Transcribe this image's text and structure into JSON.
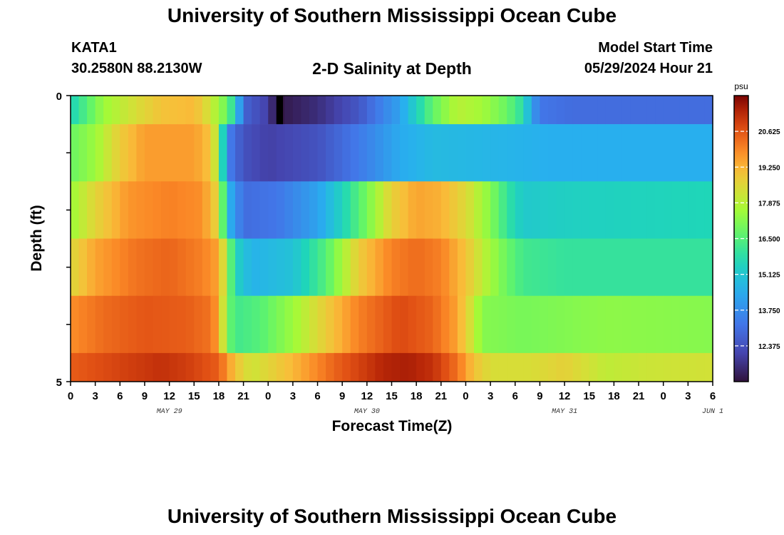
{
  "header": {
    "title": "University of Southern Mississippi Ocean Cube",
    "station": "KATA1",
    "coords": "30.2580N  88.2130W",
    "subtitle": "2-D Salinity at Depth",
    "model_start_label": "Model Start Time",
    "model_start_value": "05/29/2024 Hour 21"
  },
  "footer": {
    "title": "University of Southern Mississippi Ocean Cube"
  },
  "chart_data": {
    "type": "heatmap",
    "title": "2-D Salinity at Depth",
    "xlabel": "Forecast Time(Z)",
    "ylabel": "Depth (ft)",
    "ylim": [
      0,
      5
    ],
    "y_ticks": [
      "0",
      "5"
    ],
    "x_tick_labels": [
      "0",
      "3",
      "6",
      "9",
      "12",
      "15",
      "18",
      "21",
      "0",
      "3",
      "6",
      "9",
      "12",
      "15",
      "18",
      "21",
      "0",
      "3",
      "6",
      "9",
      "12",
      "15",
      "18",
      "21",
      "0",
      "3",
      "6"
    ],
    "date_labels": [
      {
        "text": "MAY 29",
        "hour": 12
      },
      {
        "text": "MAY 30",
        "hour": 36
      },
      {
        "text": "MAY 31",
        "hour": 60
      },
      {
        "text": "JUN 1",
        "hour": 78
      }
    ],
    "hours_total": 78,
    "colorbar": {
      "unit": "psu",
      "min": 11.0,
      "max": 22.0,
      "ticks": [
        "20.625",
        "19.250",
        "17.875",
        "16.500",
        "15.125",
        "13.750",
        "12.375"
      ]
    },
    "layers": [
      {
        "depth_range": [
          0.0,
          0.5
        ],
        "keyframes": [
          [
            0,
            15.5
          ],
          [
            2,
            16.5
          ],
          [
            4,
            17.5
          ],
          [
            7,
            18.2
          ],
          [
            11,
            19.0
          ],
          [
            15,
            19.2
          ],
          [
            17,
            18.2
          ],
          [
            18,
            17.5
          ],
          [
            19,
            16.8
          ],
          [
            20,
            15.5
          ],
          [
            21,
            12.8
          ],
          [
            24,
            12.0
          ],
          [
            25,
            11.0
          ],
          [
            26,
            11.2
          ],
          [
            30,
            11.6
          ],
          [
            35,
            12.5
          ],
          [
            40,
            14.2
          ],
          [
            44,
            16.7
          ],
          [
            47,
            17.9
          ],
          [
            50,
            17.6
          ],
          [
            53,
            16.8
          ],
          [
            55,
            15.8
          ],
          [
            56,
            14.2
          ],
          [
            57,
            13.2
          ],
          [
            61,
            13.0
          ],
          [
            78,
            13.0
          ]
        ]
      },
      {
        "depth_range": [
          0.5,
          1.5
        ],
        "keyframes": [
          [
            0,
            16.8
          ],
          [
            3,
            17.5
          ],
          [
            6,
            18.8
          ],
          [
            9,
            19.6
          ],
          [
            15,
            19.6
          ],
          [
            17,
            19.0
          ],
          [
            18,
            17.5
          ],
          [
            19,
            13.5
          ],
          [
            21,
            12.4
          ],
          [
            24,
            12.0
          ],
          [
            30,
            12.4
          ],
          [
            36,
            13.5
          ],
          [
            40,
            14.4
          ],
          [
            44,
            14.8
          ],
          [
            50,
            14.7
          ],
          [
            55,
            14.6
          ],
          [
            58,
            14.5
          ],
          [
            78,
            14.5
          ]
        ]
      },
      {
        "depth_range": [
          1.5,
          2.5
        ],
        "keyframes": [
          [
            0,
            17.5
          ],
          [
            3,
            18.6
          ],
          [
            7,
            19.7
          ],
          [
            12,
            20.0
          ],
          [
            16,
            19.8
          ],
          [
            18,
            18.5
          ],
          [
            19,
            14.8
          ],
          [
            21,
            13.0
          ],
          [
            25,
            13.2
          ],
          [
            30,
            14.2
          ],
          [
            33,
            15.5
          ],
          [
            36,
            17.0
          ],
          [
            39,
            18.7
          ],
          [
            42,
            19.5
          ],
          [
            45,
            19.3
          ],
          [
            48,
            18.5
          ],
          [
            51,
            17.2
          ],
          [
            53,
            16.0
          ],
          [
            55,
            15.2
          ],
          [
            60,
            15.4
          ],
          [
            78,
            15.6
          ]
        ]
      },
      {
        "depth_range": [
          2.5,
          3.5
        ],
        "keyframes": [
          [
            0,
            18.5
          ],
          [
            3,
            19.5
          ],
          [
            8,
            20.2
          ],
          [
            12,
            20.4
          ],
          [
            16,
            20.0
          ],
          [
            18,
            19.5
          ],
          [
            19,
            17.5
          ],
          [
            20,
            15.5
          ],
          [
            22,
            14.6
          ],
          [
            27,
            15.0
          ],
          [
            31,
            16.5
          ],
          [
            35,
            18.8
          ],
          [
            39,
            20.0
          ],
          [
            42,
            20.3
          ],
          [
            45,
            20.0
          ],
          [
            48,
            19.0
          ],
          [
            50,
            18.0
          ],
          [
            53,
            16.8
          ],
          [
            55,
            16.2
          ],
          [
            60,
            16.0
          ],
          [
            78,
            16.0
          ]
        ]
      },
      {
        "depth_range": [
          3.5,
          4.5
        ],
        "keyframes": [
          [
            0,
            19.8
          ],
          [
            4,
            20.3
          ],
          [
            9,
            20.6
          ],
          [
            14,
            20.5
          ],
          [
            17,
            20.2
          ],
          [
            18,
            19.5
          ],
          [
            19,
            17.0
          ],
          [
            20,
            16.2
          ],
          [
            23,
            16.5
          ],
          [
            27,
            17.5
          ],
          [
            31,
            18.8
          ],
          [
            35,
            20.0
          ],
          [
            40,
            20.8
          ],
          [
            44,
            20.4
          ],
          [
            47,
            19.5
          ],
          [
            49,
            18.0
          ],
          [
            50,
            17.2
          ],
          [
            55,
            17.0
          ],
          [
            65,
            17.3
          ],
          [
            78,
            17.2
          ]
        ]
      },
      {
        "depth_range": [
          4.5,
          5.0
        ],
        "keyframes": [
          [
            0,
            20.5
          ],
          [
            6,
            20.9
          ],
          [
            11,
            21.2
          ],
          [
            14,
            21.0
          ],
          [
            18,
            20.5
          ],
          [
            20,
            19.0
          ],
          [
            22,
            18.2
          ],
          [
            27,
            19.2
          ],
          [
            32,
            20.4
          ],
          [
            38,
            21.4
          ],
          [
            41,
            21.5
          ],
          [
            44,
            21.2
          ],
          [
            47,
            20.2
          ],
          [
            49,
            19.0
          ],
          [
            51,
            18.4
          ],
          [
            56,
            18.4
          ],
          [
            60,
            18.7
          ],
          [
            65,
            18.0
          ],
          [
            70,
            18.2
          ],
          [
            78,
            18.3
          ]
        ]
      }
    ],
    "overlay_marks": [
      {
        "hour": 25,
        "depth_range": [
          0.0,
          0.5
        ],
        "color": "#000000"
      }
    ]
  }
}
